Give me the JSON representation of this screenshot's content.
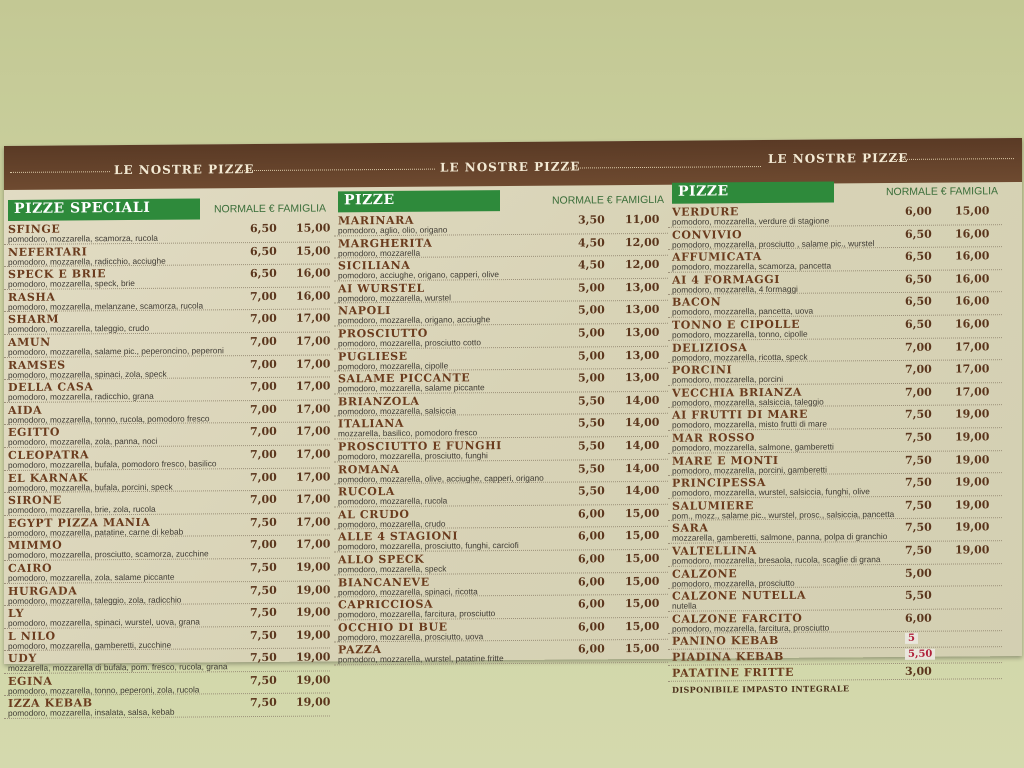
{
  "header_titles": [
    "LE NOSTRE PIZZE",
    "LE NOSTRE PIZZE",
    "LE NOSTRE PIZZE"
  ],
  "colors": {
    "header_bar": "#5a3a25",
    "section_label": "#2e8a3b",
    "item_name": "#6a3b1d",
    "handwritten_price": "#b0203a"
  },
  "columns": [
    {
      "label": "PIZZE SPECIALI",
      "price_header": "NORMALE € FAMIGLIA",
      "items": [
        {
          "name": "SFINGE",
          "desc": "pomodoro, mozzarella, scamorza, rucola",
          "normale": "6,50",
          "famiglia": "15,00"
        },
        {
          "name": "NEFERTARI",
          "desc": "pomodoro, mozzarella, radicchio, acciughe",
          "normale": "6,50",
          "famiglia": "15,00"
        },
        {
          "name": "SPECK E BRIE",
          "desc": "pomodoro, mozzarella, speck, brie",
          "normale": "6,50",
          "famiglia": "16,00"
        },
        {
          "name": "RASHA",
          "desc": "pomodoro, mozzarella, melanzane, scamorza, rucola",
          "normale": "7,00",
          "famiglia": "16,00"
        },
        {
          "name": "SHARM",
          "desc": "pomodoro, mozzarella, taleggio, crudo",
          "normale": "7,00",
          "famiglia": "17,00"
        },
        {
          "name": "AMUN",
          "desc": "pomodoro, mozzarella, salame pic., peperoncino, peperoni",
          "normale": "7,00",
          "famiglia": "17,00"
        },
        {
          "name": "RAMSES",
          "desc": "pomodoro, mozzarella, spinaci, zola, speck",
          "normale": "7,00",
          "famiglia": "17,00"
        },
        {
          "name": "DELLA CASA",
          "desc": "pomodoro, mozzarella, radicchio, grana",
          "normale": "7,00",
          "famiglia": "17,00"
        },
        {
          "name": "AIDA",
          "desc": "pomodoro, mozzarella, tonno, rucola, pomodoro fresco",
          "normale": "7,00",
          "famiglia": "17,00"
        },
        {
          "name": "EGITTO",
          "desc": "pomodoro, mozzarella, zola, panna, noci",
          "normale": "7,00",
          "famiglia": "17,00"
        },
        {
          "name": "CLEOPATRA",
          "desc": "pomodoro, mozzarella, bufala, pomodoro fresco, basilico",
          "normale": "7,00",
          "famiglia": "17,00"
        },
        {
          "name": "EL KARNAK",
          "desc": "pomodoro, mozzarella, bufala, porcini, speck",
          "normale": "7,00",
          "famiglia": "17,00"
        },
        {
          "name": "SIRONE",
          "desc": "pomodoro, mozzarella, brie, zola, rucola",
          "normale": "7,00",
          "famiglia": "17,00"
        },
        {
          "name": "EGYPT PIZZA MANIA",
          "desc": "pomodoro, mozzarella, patatine, carne di kebab",
          "normale": "7,50",
          "famiglia": "17,00"
        },
        {
          "name": "MIMMO",
          "desc": "pomodoro, mozzarella, prosciutto, scamorza, zucchine",
          "normale": "7,00",
          "famiglia": "17,00"
        },
        {
          "name": "CAIRO",
          "desc": "pomodoro, mozzarella, zola, salame piccante",
          "normale": "7,50",
          "famiglia": "19,00"
        },
        {
          "name": "HURGADA",
          "desc": "pomodoro, mozzarella, taleggio, zola, radicchio",
          "normale": "7,50",
          "famiglia": "19,00"
        },
        {
          "name": "LY",
          "desc": "pomodoro, mozzarella, spinaci, wurstel, uova, grana",
          "normale": "7,50",
          "famiglia": "19,00"
        },
        {
          "name": "L NILO",
          "desc": "pomodoro, mozzarella, gamberetti, zucchine",
          "normale": "7,50",
          "famiglia": "19,00"
        },
        {
          "name": "UDY",
          "desc": "mozzarella, mozzarella di bufala, pom. fresco, rucola, grana",
          "normale": "7,50",
          "famiglia": "19,00"
        },
        {
          "name": "EGINA",
          "desc": "pomodoro, mozzarella, tonno, peperoni, zola, rucola",
          "normale": "7,50",
          "famiglia": "19,00"
        },
        {
          "name": "IZZA KEBAB",
          "desc": "pomodoro, mozzarella, insalata, salsa, kebab",
          "normale": "7,50",
          "famiglia": "19,00"
        }
      ]
    },
    {
      "label": "PIZZE",
      "price_header": "NORMALE € FAMIGLIA",
      "items": [
        {
          "name": "MARINARA",
          "desc": "pomodoro, aglio, olio, origano",
          "normale": "3,50",
          "famiglia": "11,00"
        },
        {
          "name": "MARGHERITA",
          "desc": "pomodoro, mozzarella",
          "normale": "4,50",
          "famiglia": "12,00"
        },
        {
          "name": "SICILIANA",
          "desc": "pomodoro, acciughe, origano, capperi, olive",
          "normale": "4,50",
          "famiglia": "12,00"
        },
        {
          "name": "AI WURSTEL",
          "desc": "pomodoro, mozzarella, wurstel",
          "normale": "5,00",
          "famiglia": "13,00"
        },
        {
          "name": "NAPOLI",
          "desc": "pomodoro, mozzarella, origano, acciughe",
          "normale": "5,00",
          "famiglia": "13,00"
        },
        {
          "name": "PROSCIUTTO",
          "desc": "pomodoro, mozzarella, prosciutto cotto",
          "normale": "5,00",
          "famiglia": "13,00"
        },
        {
          "name": "PUGLIESE",
          "desc": "pomodoro, mozzarella, cipolle",
          "normale": "5,00",
          "famiglia": "13,00"
        },
        {
          "name": "SALAME PICCANTE",
          "desc": "pomodoro, mozzarella, salame piccante",
          "normale": "5,00",
          "famiglia": "13,00"
        },
        {
          "name": "BRIANZOLA",
          "desc": "pomodoro, mozzarella, salsiccia",
          "normale": "5,50",
          "famiglia": "14,00"
        },
        {
          "name": "ITALIANA",
          "desc": "mozzarella, basilico, pomodoro fresco",
          "normale": "5,50",
          "famiglia": "14,00"
        },
        {
          "name": "PROSCIUTTO E FUNGHI",
          "desc": "pomodoro, mozzarella, prosciutto, funghi",
          "normale": "5,50",
          "famiglia": "14,00"
        },
        {
          "name": "ROMANA",
          "desc": "pomodoro, mozzarella, olive, acciughe, capperi, origano",
          "normale": "5,50",
          "famiglia": "14,00"
        },
        {
          "name": "RUCOLA",
          "desc": "pomodoro, mozzarella, rucola",
          "normale": "5,50",
          "famiglia": "14,00"
        },
        {
          "name": "AL CRUDO",
          "desc": "pomodoro, mozzarella, crudo",
          "normale": "6,00",
          "famiglia": "15,00"
        },
        {
          "name": "ALLE 4 STAGIONI",
          "desc": "pomodoro, mozzarella, prosciutto, funghi, carciofi",
          "normale": "6,00",
          "famiglia": "15,00"
        },
        {
          "name": "ALLO SPECK",
          "desc": "pomodoro, mozzarella, speck",
          "normale": "6,00",
          "famiglia": "15,00"
        },
        {
          "name": "BIANCANEVE",
          "desc": "pomodoro, mozzarella, spinaci, ricotta",
          "normale": "6,00",
          "famiglia": "15,00"
        },
        {
          "name": "CAPRICCIOSA",
          "desc": "pomodoro, mozzarella, farcitura, prosciutto",
          "normale": "6,00",
          "famiglia": "15,00"
        },
        {
          "name": "OCCHIO DI BUE",
          "desc": "pomodoro, mozzarella, prosciutto, uova",
          "normale": "6,00",
          "famiglia": "15,00"
        },
        {
          "name": "PAZZA",
          "desc": "pomodoro, mozzarella, wurstel, patatine fritte",
          "normale": "6,00",
          "famiglia": "15,00"
        }
      ]
    },
    {
      "label": "PIZZE",
      "price_header": "NORMALE € FAMIGLIA",
      "items": [
        {
          "name": "VERDURE",
          "desc": "pomodoro, mozzarella, verdure di stagione",
          "normale": "6,00",
          "famiglia": "15,00"
        },
        {
          "name": "CONVIVIO",
          "desc": "pomodoro, mozzarella, prosciutto , salame pic., wurstel",
          "normale": "6,50",
          "famiglia": "16,00"
        },
        {
          "name": "AFFUMICATA",
          "desc": "pomodoro, mozzarella, scamorza, pancetta",
          "normale": "6,50",
          "famiglia": "16,00"
        },
        {
          "name": "AI 4 FORMAGGI",
          "desc": "pomodoro, mozzarella, 4 formaggi",
          "normale": "6,50",
          "famiglia": "16,00"
        },
        {
          "name": "BACON",
          "desc": "pomodoro, mozzarella, pancetta, uova",
          "normale": "6,50",
          "famiglia": "16,00"
        },
        {
          "name": "TONNO E CIPOLLE",
          "desc": "pomodoro, mozzarella, tonno, cipolle",
          "normale": "6,50",
          "famiglia": "16,00"
        },
        {
          "name": "DELIZIOSA",
          "desc": "pomodoro, mozzarella, ricotta, speck",
          "normale": "7,00",
          "famiglia": "17,00"
        },
        {
          "name": "PORCINI",
          "desc": "pomodoro, mozzarella, porcini",
          "normale": "7,00",
          "famiglia": "17,00"
        },
        {
          "name": "VECCHIA BRIANZA",
          "desc": "pomodoro, mozzarella, salsiccia, taleggio",
          "normale": "7,00",
          "famiglia": "17,00"
        },
        {
          "name": "AI FRUTTI DI MARE",
          "desc": "pomodoro, mozzarella, misto frutti di mare",
          "normale": "7,50",
          "famiglia": "19,00"
        },
        {
          "name": "MAR ROSSO",
          "desc": "pomodoro, mozzarella, salmone, gamberetti",
          "normale": "7,50",
          "famiglia": "19,00"
        },
        {
          "name": "MARE E MONTI",
          "desc": "pomodoro, mozzarella, porcini, gamberetti",
          "normale": "7,50",
          "famiglia": "19,00"
        },
        {
          "name": "PRINCIPESSA",
          "desc": "pomodoro, mozzarella, wurstel, salsiccia, funghi, olive",
          "normale": "7,50",
          "famiglia": "19,00"
        },
        {
          "name": "SALUMIERE",
          "desc": "pom., mozz., salame pic., wurstel, prosc., salsiccia, pancetta",
          "normale": "7,50",
          "famiglia": "19,00"
        },
        {
          "name": "SARA",
          "desc": "mozzarella, gamberetti, salmone, panna, polpa di granchio",
          "normale": "7,50",
          "famiglia": "19,00"
        },
        {
          "name": "VALTELLINA",
          "desc": "pomodoro, mozzarella, bresaola, rucola, scaglie di grana",
          "normale": "7,50",
          "famiglia": "19,00"
        },
        {
          "name": "CALZONE",
          "desc": "pomodoro, mozzarella, prosciutto",
          "normale": "5,00",
          "famiglia": ""
        },
        {
          "name": "CALZONE NUTELLA",
          "desc": "nutella",
          "normale": "5,50",
          "famiglia": ""
        },
        {
          "name": "CALZONE FARCITO",
          "desc": "pomodoro, mozzarella, farcitura, prosciutto",
          "normale": "6,00",
          "famiglia": ""
        },
        {
          "name": "PANINO KEBAB",
          "desc": "",
          "normale": "5",
          "famiglia": "",
          "handwritten": true
        },
        {
          "name": "PIADINA KEBAB",
          "desc": "",
          "normale": "5,50",
          "famiglia": "",
          "handwritten": true
        },
        {
          "name": "PATATINE FRITTE",
          "desc": "",
          "normale": "3,00",
          "famiglia": ""
        }
      ],
      "footer": "DISPONIBILE IMPASTO INTEGRALE"
    }
  ]
}
